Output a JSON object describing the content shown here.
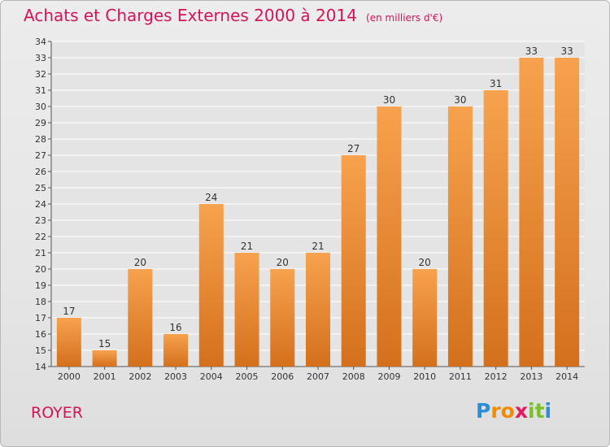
{
  "title": "Achats et Charges Externes 2000 à 2014",
  "unit_label": "(en milliers d'€)",
  "town": "ROYER",
  "logo": {
    "letters": [
      "P",
      "r",
      "o",
      "x",
      "i",
      "t",
      "i"
    ],
    "colors": [
      "#2a8fd6",
      "#f28b00",
      "#f28b00",
      "#e5195c",
      "#7cbf2a",
      "#7cbf2a",
      "#2a8fd6"
    ]
  },
  "colors": {
    "title": "#d4145a",
    "bar_light": "#f7a24e",
    "bar_dark": "#d4701c",
    "grid": "#ffffff",
    "axis_text": "#333333"
  },
  "chart_data": {
    "type": "bar",
    "categories": [
      "2000",
      "2001",
      "2002",
      "2003",
      "2004",
      "2005",
      "2006",
      "2007",
      "2008",
      "2009",
      "2010",
      "2011",
      "2012",
      "2013",
      "2014"
    ],
    "values": [
      17,
      15,
      20,
      16,
      24,
      21,
      20,
      21,
      27,
      30,
      20,
      30,
      31,
      33,
      33
    ],
    "ylim": [
      14,
      34
    ],
    "yticks": [
      14,
      15,
      16,
      17,
      18,
      19,
      20,
      21,
      22,
      23,
      24,
      25,
      26,
      27,
      28,
      29,
      30,
      31,
      32,
      33,
      34
    ],
    "grid": true,
    "title": "Achats et Charges Externes 2000 à 2014",
    "xlabel": "",
    "ylabel": ""
  }
}
